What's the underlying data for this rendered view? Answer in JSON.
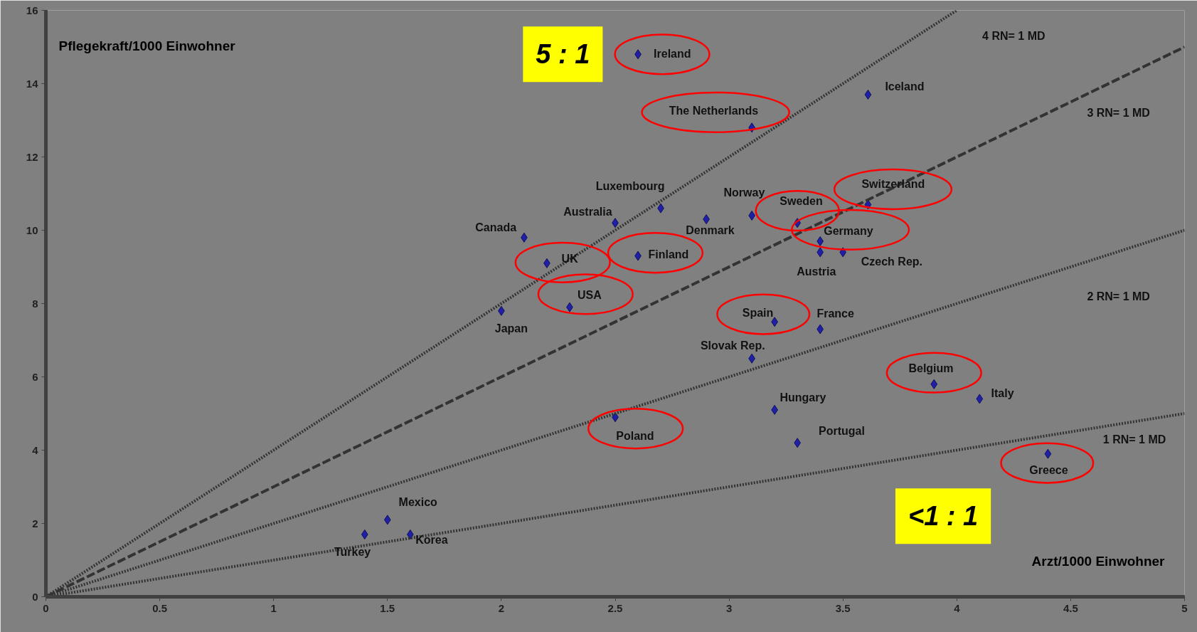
{
  "chart_data": {
    "type": "scatter",
    "xlabel": "Arzt/1000 Einwohner",
    "ylabel": "Pflegekraft/1000 Einwohner",
    "xlim": [
      0,
      5
    ],
    "ylim": [
      0,
      16
    ],
    "xticks": [
      0,
      0.5,
      1,
      1.5,
      2,
      2.5,
      3,
      3.5,
      4,
      4.5,
      5
    ],
    "yticks": [
      0,
      2,
      4,
      6,
      8,
      10,
      12,
      14,
      16
    ],
    "grid": false,
    "series": [
      {
        "color": "#1f1fa8",
        "marker": "diamond",
        "x": [
          2.6,
          3.61,
          3.1,
          3.61,
          2.7,
          3.1,
          2.9,
          2.5,
          3.3,
          2.1,
          3.4,
          3.4,
          3.5,
          2.6,
          2.2,
          2.3,
          2.0,
          3.2,
          3.4,
          3.1,
          3.9,
          4.1,
          2.5,
          3.2,
          3.3,
          4.4,
          1.5,
          1.4,
          1.6
        ],
        "values": [
          14.8,
          13.7,
          12.8,
          10.7,
          10.6,
          10.4,
          10.3,
          10.2,
          10.2,
          9.8,
          9.7,
          9.4,
          9.4,
          9.3,
          9.1,
          7.9,
          7.8,
          7.5,
          7.3,
          6.5,
          5.8,
          5.4,
          4.9,
          5.1,
          4.2,
          3.9,
          2.1,
          1.7,
          1.7
        ]
      },
      {
        "type": "line",
        "color": "#333333",
        "line_style": "dotted",
        "x": [
          0,
          4
        ],
        "values": [
          0,
          16
        ]
      },
      {
        "type": "line",
        "color": "#333333",
        "line_style": "dashed",
        "x": [
          0,
          5
        ],
        "values": [
          0,
          15
        ]
      },
      {
        "type": "line",
        "color": "#333333",
        "line_style": "dotted",
        "x": [
          0,
          5
        ],
        "values": [
          0,
          10
        ]
      },
      {
        "type": "line",
        "color": "#333333",
        "line_style": "dotted",
        "x": [
          0,
          5
        ],
        "values": [
          0,
          5
        ]
      }
    ],
    "annotations": [
      {
        "text": "Ireland",
        "x": 2.6,
        "y": 14.8
      },
      {
        "text": "Iceland",
        "x": 3.61,
        "y": 13.7
      },
      {
        "text": "The Netherlands",
        "x": 3.1,
        "y": 12.8
      },
      {
        "text": "Switzerland",
        "x": 3.61,
        "y": 10.7
      },
      {
        "text": "Luxembourg",
        "x": 2.7,
        "y": 10.6
      },
      {
        "text": "Norway",
        "x": 3.1,
        "y": 10.4
      },
      {
        "text": "Denmark",
        "x": 2.9,
        "y": 10.3
      },
      {
        "text": "Australia",
        "x": 2.5,
        "y": 10.2
      },
      {
        "text": "Sweden",
        "x": 3.3,
        "y": 10.2
      },
      {
        "text": "Canada",
        "x": 2.1,
        "y": 9.8
      },
      {
        "text": "Germany",
        "x": 3.4,
        "y": 9.7
      },
      {
        "text": "Austria",
        "x": 3.4,
        "y": 9.4
      },
      {
        "text": "Czech Rep.",
        "x": 3.5,
        "y": 9.4
      },
      {
        "text": "Finland",
        "x": 2.6,
        "y": 9.3
      },
      {
        "text": "UK",
        "x": 2.2,
        "y": 9.1
      },
      {
        "text": "USA",
        "x": 2.3,
        "y": 7.9
      },
      {
        "text": "Japan",
        "x": 2.0,
        "y": 7.8
      },
      {
        "text": "Spain",
        "x": 3.2,
        "y": 7.5
      },
      {
        "text": "France",
        "x": 3.4,
        "y": 7.3
      },
      {
        "text": "Slovak Rep.",
        "x": 3.1,
        "y": 6.5
      },
      {
        "text": "Belgium",
        "x": 3.9,
        "y": 5.8
      },
      {
        "text": "Italy",
        "x": 4.1,
        "y": 5.4
      },
      {
        "text": "Poland",
        "x": 2.5,
        "y": 4.9
      },
      {
        "text": "Hungary",
        "x": 3.2,
        "y": 5.1
      },
      {
        "text": "Portugal",
        "x": 3.3,
        "y": 4.2
      },
      {
        "text": "Greece",
        "x": 4.4,
        "y": 3.9
      },
      {
        "text": "Mexico",
        "x": 1.5,
        "y": 2.1
      },
      {
        "text": "Turkey",
        "x": 1.4,
        "y": 1.7
      },
      {
        "text": "Korea",
        "x": 1.6,
        "y": 1.7
      },
      "4 RN= 1 MD",
      "3 RN= 1 MD",
      "2 RN= 1 MD",
      "1 RN= 1 MD",
      "5 : 1",
      "<1 : 1"
    ]
  }
}
